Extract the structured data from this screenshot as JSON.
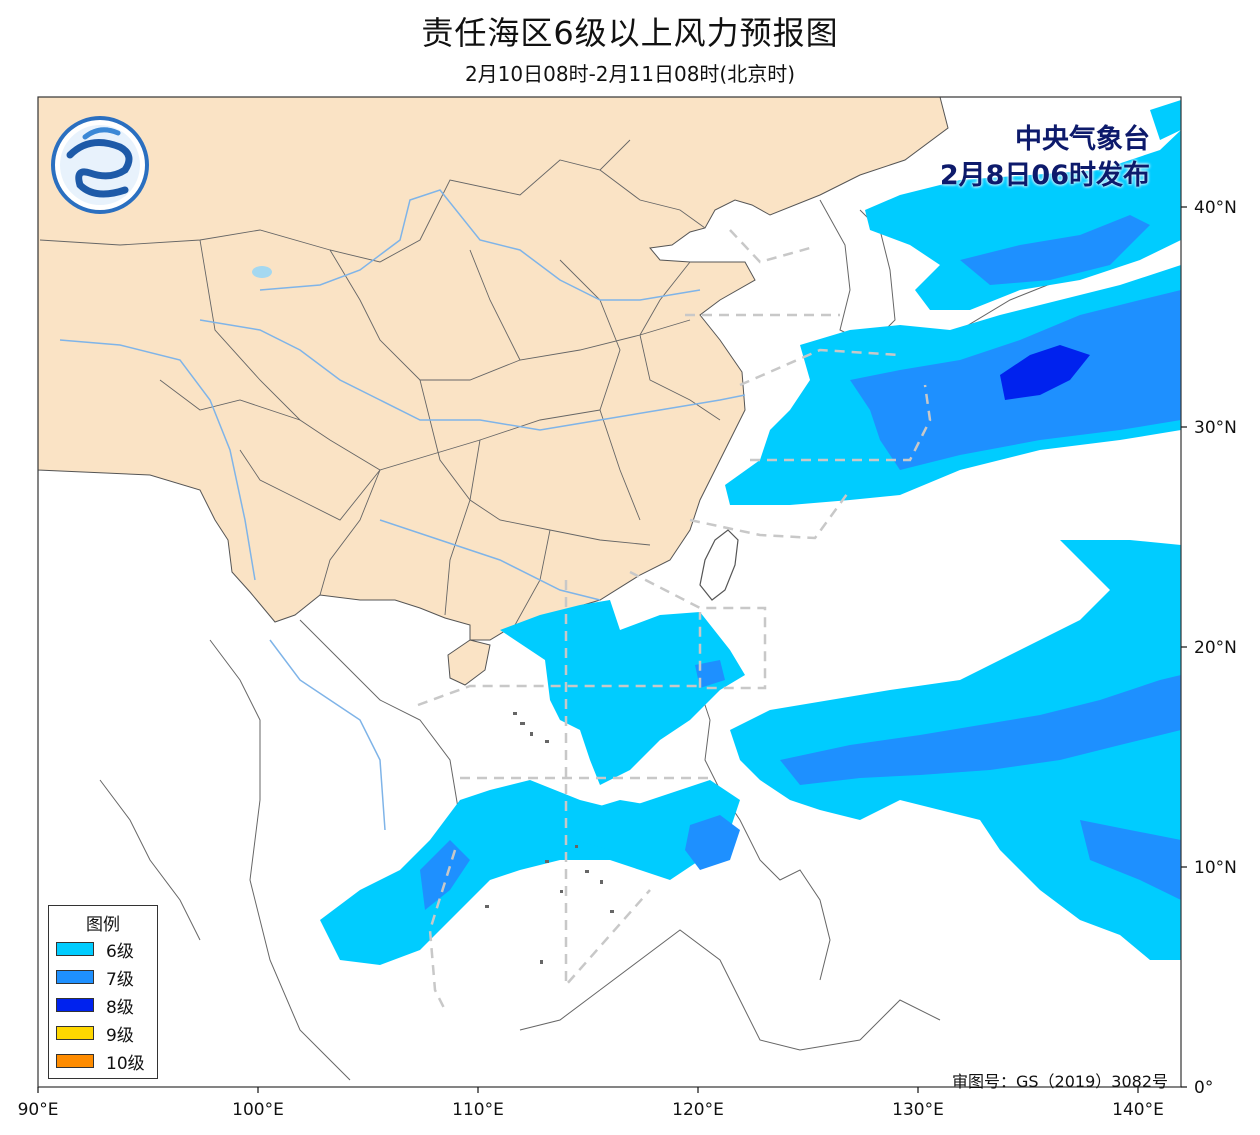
{
  "title": "责任海区6级以上风力预报图",
  "subtitle": "2月10日08时-2月11日08时(北京时)",
  "issuer": {
    "line1": "中央气象台",
    "line2": "2月8日06时发布"
  },
  "legend": {
    "title": "图例",
    "items": [
      {
        "label": "6级",
        "color": "#00ccff"
      },
      {
        "label": "7级",
        "color": "#1e90ff"
      },
      {
        "label": "8级",
        "color": "#0022ee"
      },
      {
        "label": "9级",
        "color": "#ffd700"
      },
      {
        "label": "10级",
        "color": "#ff8c00"
      }
    ]
  },
  "review_number": "审图号：GS（2019）3082号",
  "axes": {
    "lon_labels": [
      "90°E",
      "100°E",
      "110°E",
      "120°E",
      "130°E",
      "140°E"
    ],
    "lat_labels": [
      "40°N",
      "30°N",
      "20°N",
      "10°N",
      "0°"
    ]
  },
  "colors": {
    "land_china": "#fae3c5",
    "ocean": "#ffffff",
    "wind6": "#00ccff",
    "wind7": "#1e90ff",
    "wind8": "#0022ee",
    "rivers": "#7fb4e8",
    "sea_zones": "#cccccc"
  }
}
